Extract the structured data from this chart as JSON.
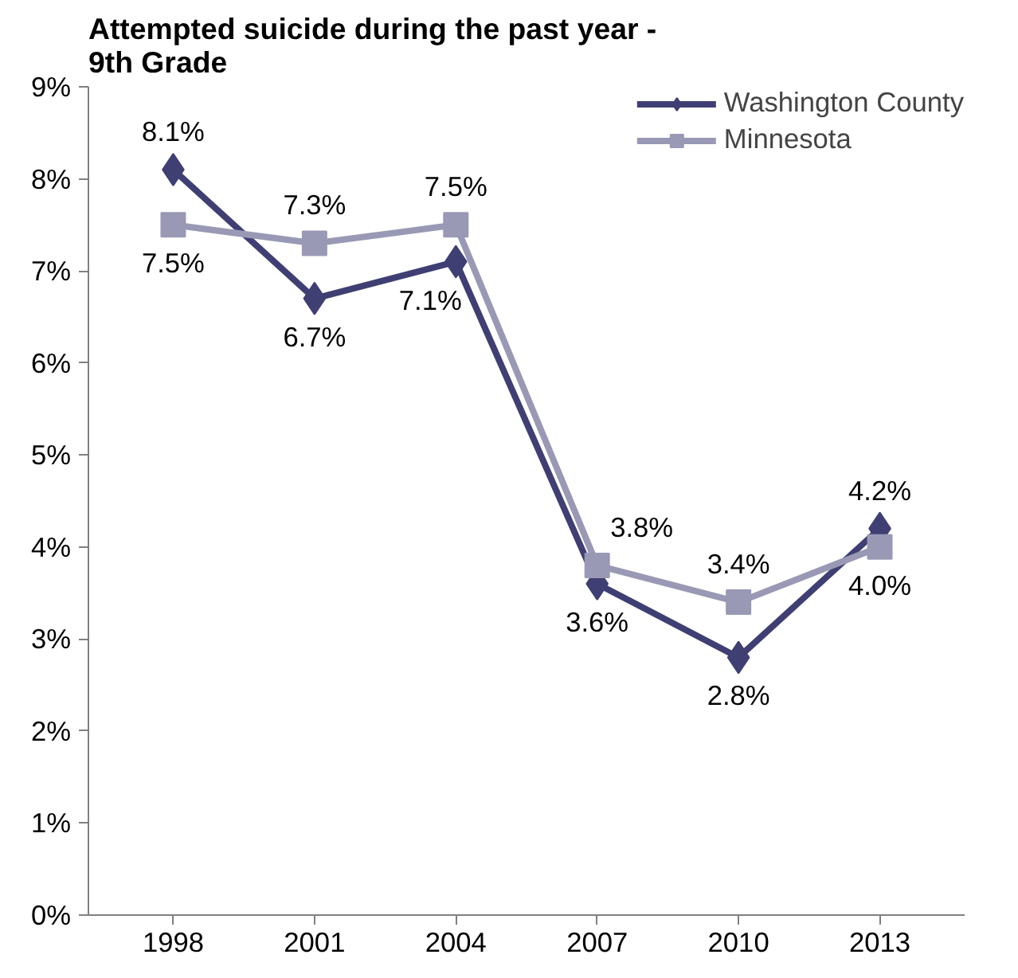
{
  "chart_data": {
    "type": "line",
    "title": "Attempted suicide during the past year -\n9th Grade",
    "categories": [
      "1998",
      "2001",
      "2004",
      "2007",
      "2010",
      "2013"
    ],
    "series": [
      {
        "name": "Washington County",
        "color": "#3f3f74",
        "marker": "diamond",
        "values": [
          8.1,
          6.7,
          7.1,
          3.6,
          2.8,
          4.2
        ],
        "value_labels": [
          "8.1%",
          "6.7%",
          "7.1%",
          "3.6%",
          "2.8%",
          "4.2%"
        ]
      },
      {
        "name": "Minnesota",
        "color": "#9999b5",
        "marker": "square",
        "values": [
          7.5,
          7.3,
          7.5,
          3.8,
          3.4,
          4.0
        ],
        "value_labels": [
          "7.5%",
          "7.3%",
          "7.5%",
          "3.8%",
          "3.4%",
          "4.0%"
        ]
      }
    ],
    "ylim": [
      0,
      9
    ],
    "yticks": [
      {
        "value": 0,
        "label": "0%"
      },
      {
        "value": 1,
        "label": "1%"
      },
      {
        "value": 2,
        "label": "2%"
      },
      {
        "value": 3,
        "label": "3%"
      },
      {
        "value": 4,
        "label": "4%"
      },
      {
        "value": 5,
        "label": "5%"
      },
      {
        "value": 6,
        "label": "6%"
      },
      {
        "value": 7,
        "label": "7%"
      },
      {
        "value": 8,
        "label": "8%"
      },
      {
        "value": 9,
        "label": "9%"
      }
    ],
    "legend": "top right",
    "line_style": "solid"
  }
}
